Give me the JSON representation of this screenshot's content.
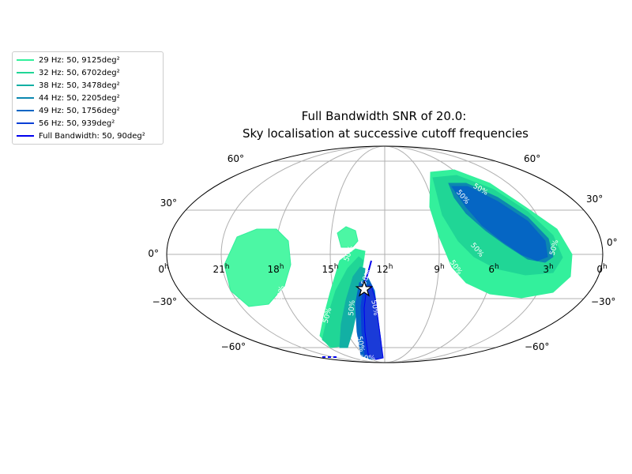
{
  "chart_data": {
    "type": "skymap",
    "projection": "mollweide",
    "title_lines": [
      "Full Bandwidth SNR of 20.0:",
      "Sky localisation at successive cutoff frequencies"
    ],
    "lat_tick_labels": {
      "left": [
        "60°",
        "30°",
        "0°",
        "−30°",
        "−60°"
      ],
      "right": [
        "60°",
        "30°",
        "0°",
        "−30°",
        "−60°"
      ]
    },
    "ra_tick_labels": [
      {
        "base": "0",
        "sup": "h"
      },
      {
        "base": "21",
        "sup": "h"
      },
      {
        "base": "18",
        "sup": "h"
      },
      {
        "base": "15",
        "sup": "h"
      },
      {
        "base": "12",
        "sup": "h"
      },
      {
        "base": "9",
        "sup": "h"
      },
      {
        "base": "6",
        "sup": "h"
      },
      {
        "base": "3",
        "sup": "h"
      },
      {
        "base": "0",
        "sup": "h"
      }
    ],
    "grid": true,
    "legend_position": "upper-left",
    "contour_label": "50%",
    "series": [
      {
        "label": "29 Hz: 50, 9125deg²",
        "color": "#33f09c"
      },
      {
        "label": "32 Hz: 50, 6702deg²",
        "color": "#20d696"
      },
      {
        "label": "38 Hz: 50, 3478deg²",
        "color": "#12b0a4"
      },
      {
        "label": "44 Hz: 50, 2205deg²",
        "color": "#0c88b0"
      },
      {
        "label": "49 Hz: 50, 1756deg²",
        "color": "#0566c4"
      },
      {
        "label": "56 Hz: 50, 939deg²",
        "color": "#0a3fd6"
      },
      {
        "label": "Full Bandwidth: 50, 90deg²",
        "color": "#0000ee"
      }
    ]
  }
}
